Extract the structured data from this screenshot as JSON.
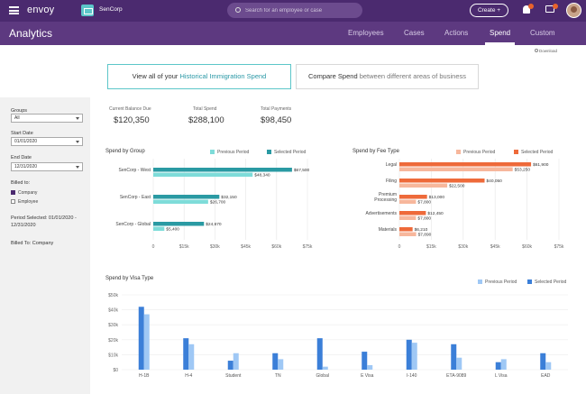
{
  "topbar": {
    "logo_text": "envoy",
    "company": "SenCorp",
    "search_placeholder": "Search for an employee or case",
    "create_label": "Create +",
    "icons": {
      "menu": "menu-icon",
      "company": "briefcase-icon",
      "search": "search-icon",
      "notifications": "bell-icon",
      "messages": "chat-icon"
    }
  },
  "subheader": {
    "title": "Analytics",
    "tabs": [
      {
        "label": "Employees",
        "active": false
      },
      {
        "label": "Cases",
        "active": false
      },
      {
        "label": "Actions",
        "active": false
      },
      {
        "label": "Spend",
        "active": true
      },
      {
        "label": "Custom",
        "active": false
      }
    ]
  },
  "download_label": "Download",
  "toggles": {
    "historical": {
      "prefix": "View all of your",
      "highlight": "Historical Immigration Spend"
    },
    "compare": {
      "highlight": "Compare Spend",
      "suffix": "between different areas of business"
    }
  },
  "sidebar": {
    "groups_label": "Groups",
    "groups_value": "All",
    "start_label": "Start Date",
    "start_value": "01/01/2020",
    "end_label": "End Date",
    "end_value": "12/31/2020",
    "billed_label": "Billed to:",
    "opt_company": "Company",
    "opt_employee": "Employee",
    "period_text": "Period Selected: 01/01/2020 - 12/31/2020",
    "billed_to": "Billed To: Company"
  },
  "kpis": [
    {
      "label": "Current Balance Due",
      "value": "$120,350"
    },
    {
      "label": "Total Spend",
      "value": "$288,100"
    },
    {
      "label": "Total Payments",
      "value": "$98,450"
    }
  ],
  "legend": {
    "previous": "Previous Period",
    "selected": "Selected Period"
  },
  "colors": {
    "teal_light": "#7edcd9",
    "teal": "#2a9aa3",
    "orange_light": "#f7b79c",
    "orange": "#ee6a3a",
    "blue_light": "#9fc8f5",
    "blue": "#3b7fd8",
    "brand": "#4b2a6f"
  },
  "chart_data": [
    {
      "type": "bar",
      "title": "Spend by Group",
      "orientation": "horizontal",
      "categories": [
        "SenCorp - West",
        "SenCorp - East",
        "SenCorp - Global"
      ],
      "series": [
        {
          "name": "Selected Period",
          "values": [
            67500,
            32150,
            24670
          ],
          "labels": [
            "$67,500",
            "$32,150",
            "$24,670"
          ]
        },
        {
          "name": "Previous Period",
          "values": [
            48340,
            26700,
            5400
          ],
          "labels": [
            "$48,340",
            "$26,700",
            "$5,400"
          ]
        }
      ],
      "xticks": [
        "0",
        "$15k",
        "$30k",
        "$45k",
        "$60k",
        "$75k"
      ],
      "xlim": [
        0,
        75000
      ]
    },
    {
      "type": "bar",
      "title": "Spend by Fee Type",
      "orientation": "horizontal",
      "categories": [
        "Legal",
        "Filing",
        "Premium Processing",
        "Advertisements",
        "Materials"
      ],
      "series": [
        {
          "name": "Selected Period",
          "values": [
            61900,
            40050,
            13000,
            12450,
            6210
          ],
          "labels": [
            "$61,900",
            "$40,050",
            "$13,000",
            "$12,450",
            "$6,210"
          ]
        },
        {
          "name": "Previous Period",
          "values": [
            53250,
            22500,
            7800,
            7800,
            7890
          ],
          "labels": [
            "$53,250",
            "$22,500",
            "$7,800",
            "$7,800",
            "$7,890"
          ]
        }
      ],
      "xticks": [
        "0",
        "$15k",
        "$30k",
        "$45k",
        "$60k",
        "$75k"
      ],
      "xlim": [
        0,
        75000
      ]
    },
    {
      "type": "bar",
      "title": "Spend by Visa Type",
      "categories": [
        "H-1B",
        "H-4",
        "Student",
        "TN",
        "Global",
        "E Visa",
        "I-140",
        "ETA-9089",
        "L Visa",
        "EAD"
      ],
      "series": [
        {
          "name": "Selected Period",
          "values": [
            42000,
            21000,
            6000,
            11000,
            21000,
            12000,
            20000,
            17000,
            5000,
            11000
          ]
        },
        {
          "name": "Previous Period",
          "values": [
            37000,
            17000,
            11000,
            7000,
            2000,
            3000,
            18000,
            8000,
            7000,
            5000
          ]
        }
      ],
      "yticks": [
        "$0",
        "$10k",
        "$20k",
        "$30k",
        "$40k",
        "$50k"
      ],
      "ylim": [
        0,
        50000
      ]
    }
  ]
}
